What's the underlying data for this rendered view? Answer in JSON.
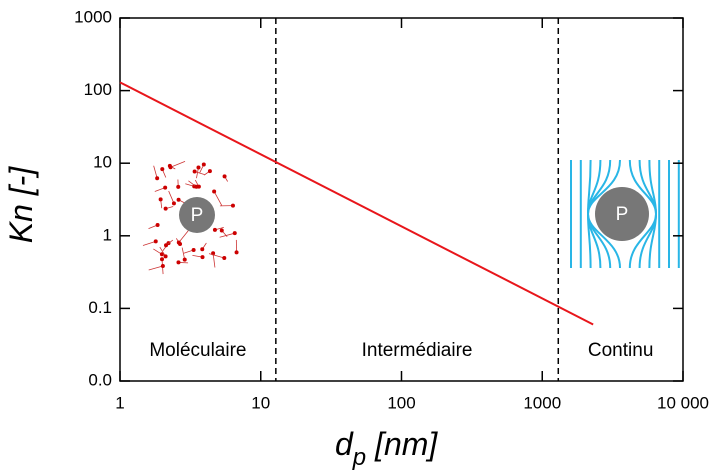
{
  "chart_data": {
    "type": "line",
    "x_label": "d",
    "x_label_sub": "p",
    "x_label_rest": " [nm]",
    "y_label": "Kn [-]",
    "log_x": true,
    "log_y": true,
    "xlim": [
      1,
      10000
    ],
    "xticks": [
      1,
      10,
      100,
      1000,
      {
        "value": 10000,
        "label": "10 000"
      }
    ],
    "ylim": [
      0.01,
      1000
    ],
    "yticks": [
      {
        "value": 0.01,
        "label": "0.0"
      },
      0.1,
      1,
      10,
      100,
      1000
    ],
    "series": [
      {
        "color": "#e8161b",
        "x": [
          1,
          2300
        ],
        "values": [
          130,
          0.06
        ]
      }
    ],
    "boundaries": [
      12.8,
      1300
    ],
    "regions": [
      "Moléculaire",
      "Intermédiaire",
      "Continu"
    ],
    "particle_labels": [
      "P",
      "P"
    ]
  }
}
